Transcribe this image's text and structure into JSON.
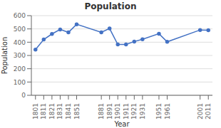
{
  "chart_data": {
    "type": "line",
    "title": "Population",
    "x_label": "Year",
    "y_label": "Population",
    "x": [
      1801,
      1811,
      1821,
      1831,
      1841,
      1851,
      1881,
      1891,
      1901,
      1911,
      1921,
      1931,
      1951,
      1961,
      2001,
      2011
    ],
    "values": [
      344,
      420,
      462,
      496,
      474,
      535,
      474,
      503,
      383,
      383,
      405,
      422,
      464,
      403,
      492,
      490
    ],
    "color": "#4472c4",
    "marker": "o",
    "xlim": [
      1796,
      2016
    ],
    "xticks": [
      1801,
      1811,
      1821,
      1831,
      1841,
      1851,
      1881,
      1891,
      1901,
      1911,
      1921,
      1931,
      1951,
      1961,
      2001,
      2011
    ],
    "ylim": [
      0,
      600
    ],
    "yticks": [
      0,
      100,
      200,
      300,
      400,
      500,
      600
    ],
    "grid": true
  }
}
